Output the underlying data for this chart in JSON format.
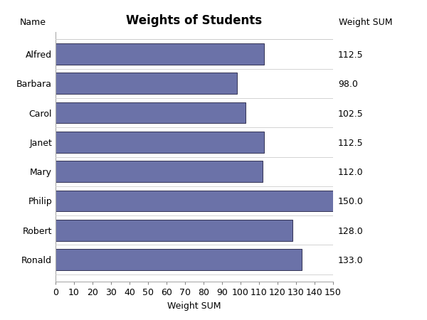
{
  "title": "Weights of Students",
  "categories": [
    "Alfred",
    "Barbara",
    "Carol",
    "Janet",
    "Mary",
    "Philip",
    "Robert",
    "Ronald"
  ],
  "values": [
    112.5,
    98.0,
    102.5,
    112.5,
    112.0,
    150.0,
    128.0,
    133.0
  ],
  "bar_color": "#6b72a8",
  "bar_edge_color": "#333355",
  "xlabel": "Weight SUM",
  "ylabel": "Name",
  "ylabel_right": "Weight SUM",
  "xlim": [
    0,
    150
  ],
  "xticks": [
    0,
    10,
    20,
    30,
    40,
    50,
    60,
    70,
    80,
    90,
    100,
    110,
    120,
    130,
    140,
    150
  ],
  "background_color": "#ffffff",
  "plot_bg_color": "#ffffff",
  "title_fontsize": 12,
  "axis_label_fontsize": 9,
  "tick_fontsize": 9,
  "annotation_fontsize": 9
}
